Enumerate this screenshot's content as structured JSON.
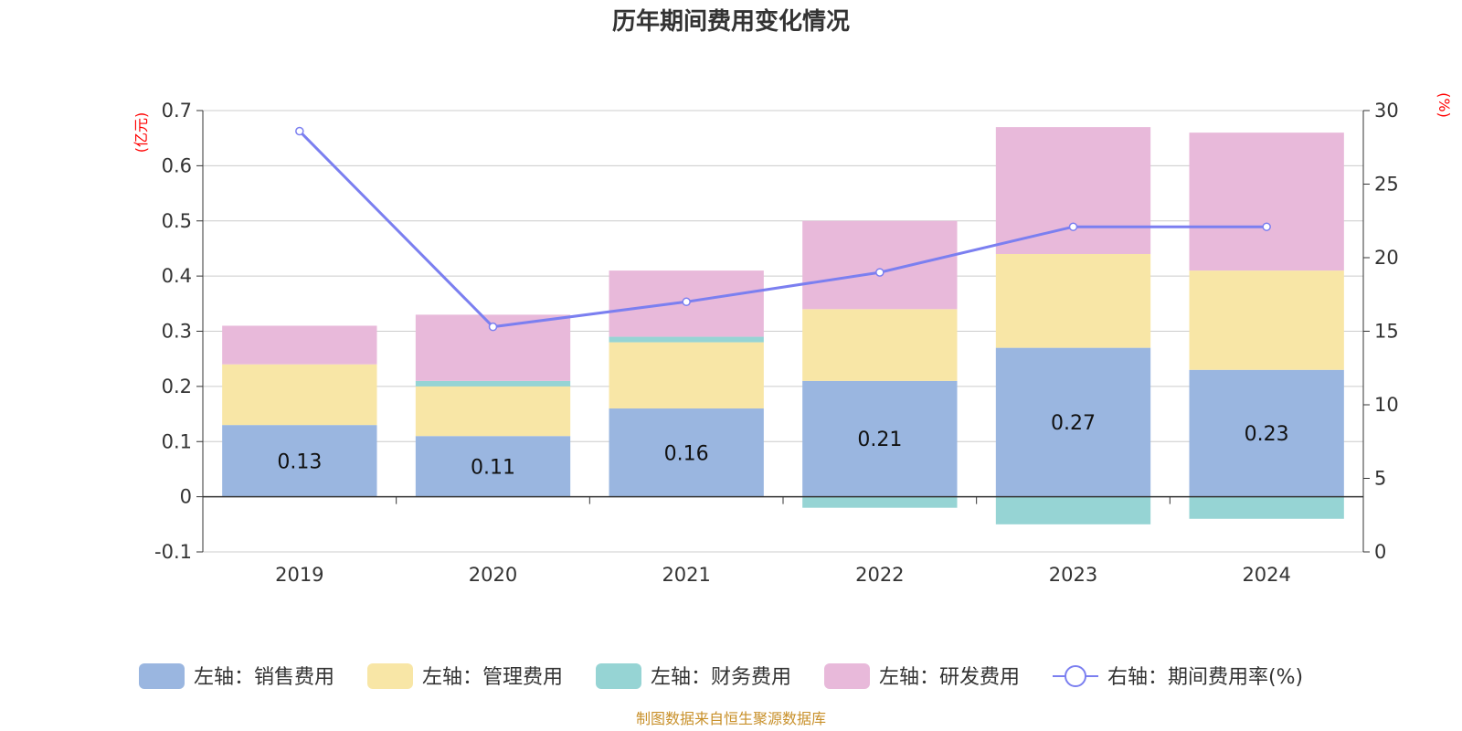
{
  "chart_data": {
    "type": "bar",
    "stacked": true,
    "title": "历年期间费用变化情况",
    "categories": [
      "2019",
      "2020",
      "2021",
      "2022",
      "2023",
      "2024"
    ],
    "left_axis": {
      "unit_label": "(亿元)",
      "ylim": [
        -0.1,
        0.7
      ],
      "ticks": [
        "-0.1",
        "0",
        "0.1",
        "0.2",
        "0.3",
        "0.4",
        "0.5",
        "0.6",
        "0.7"
      ]
    },
    "right_axis": {
      "unit_label": "(%)",
      "ylim": [
        0,
        30
      ],
      "ticks": [
        "0",
        "5",
        "10",
        "15",
        "20",
        "25",
        "30"
      ]
    },
    "series": [
      {
        "name": "左轴：销售费用",
        "type": "bar",
        "axis": "left",
        "color": "#9ab6e0",
        "values": [
          0.13,
          0.11,
          0.16,
          0.21,
          0.27,
          0.23
        ],
        "labels": [
          "0.13",
          "0.11",
          "0.16",
          "0.21",
          "0.27",
          "0.23"
        ]
      },
      {
        "name": "左轴：管理费用",
        "type": "bar",
        "axis": "left",
        "color": "#f8e6a6",
        "values": [
          0.11,
          0.09,
          0.12,
          0.13,
          0.17,
          0.18
        ]
      },
      {
        "name": "左轴：财务费用",
        "type": "bar",
        "axis": "left",
        "color": "#96d4d4",
        "values": [
          0.0,
          0.01,
          0.01,
          -0.02,
          -0.05,
          -0.04
        ]
      },
      {
        "name": "左轴：研发费用",
        "type": "bar",
        "axis": "left",
        "color": "#e8b9da",
        "values": [
          0.07,
          0.12,
          0.12,
          0.16,
          0.23,
          0.25
        ]
      },
      {
        "name": "右轴：期间费用率(%)",
        "type": "line",
        "axis": "right",
        "color": "#7b7ff0",
        "values": [
          28.6,
          15.3,
          17.0,
          19.0,
          22.1,
          22.1
        ]
      }
    ],
    "grid": true,
    "legend_position": "bottom"
  },
  "source_note": "制图数据来自恒生聚源数据库"
}
